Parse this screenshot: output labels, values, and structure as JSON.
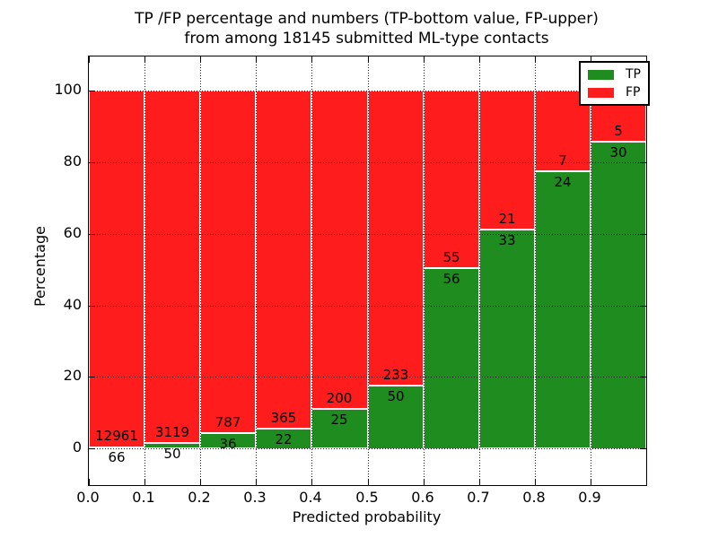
{
  "title": {
    "line1": "TP /FP percentage and numbers (TP-bottom value, FP-upper)",
    "line2": "from among 18145 submitted ML-type contacts"
  },
  "axes": {
    "xlabel": "Predicted probability",
    "ylabel": "Percentage",
    "x_tick_labels": [
      "0.0",
      "0.1",
      "0.2",
      "0.3",
      "0.4",
      "0.5",
      "0.6",
      "0.7",
      "0.8",
      "0.9"
    ],
    "y_tick_labels": [
      "0",
      "20",
      "40",
      "60",
      "80",
      "100"
    ],
    "y_ticks": [
      0,
      20,
      40,
      60,
      80,
      100
    ]
  },
  "legend": {
    "position": "upper right",
    "items": [
      {
        "label": "TP",
        "color": "#1e8c1e"
      },
      {
        "label": "FP",
        "color": "#ff1c1c"
      }
    ]
  },
  "chart_data": {
    "type": "bar",
    "stacked": true,
    "normalized_to_percent": 100,
    "title": "TP /FP percentage and numbers (TP-bottom value, FP-upper) from among 18145 submitted ML-type contacts",
    "total_submitted_contacts": 18145,
    "xlabel": "Predicted probability",
    "ylabel": "Percentage",
    "bin_edges": [
      0.0,
      0.1,
      0.2,
      0.3,
      0.4,
      0.5,
      0.6,
      0.7,
      0.8,
      0.9,
      1.0
    ],
    "series": [
      {
        "name": "TP",
        "color": "#1e8c1e",
        "counts": [
          66,
          50,
          36,
          22,
          25,
          50,
          56,
          33,
          24,
          30
        ]
      },
      {
        "name": "FP",
        "color": "#ff1c1c",
        "counts": [
          12961,
          3119,
          787,
          365,
          200,
          233,
          55,
          21,
          7,
          5
        ]
      }
    ],
    "tp_percent_of_bin": [
      0.51,
      1.58,
      4.37,
      5.68,
      11.11,
      17.67,
      50.45,
      61.11,
      77.42,
      85.71
    ],
    "xlim": [
      0.0,
      1.0
    ],
    "ylim": [
      -10.5,
      109.6
    ],
    "grid": true,
    "grid_style": "dotted",
    "legend_position": "upper right"
  }
}
